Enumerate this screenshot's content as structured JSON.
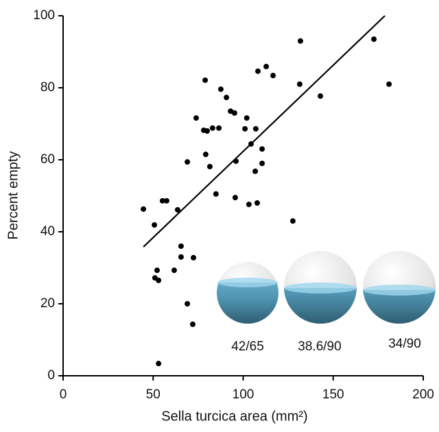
{
  "chart_data": {
    "type": "scatter",
    "xlabel": "Sella turcica area (mm²)",
    "ylabel": "Percent empty",
    "xlim": [
      0,
      200
    ],
    "xticks": [
      0,
      50,
      100,
      150,
      200
    ],
    "ylim": [
      0,
      100
    ],
    "yticks": [
      0,
      20,
      40,
      60,
      80,
      100
    ],
    "color": "#000000",
    "x": [
      44.6,
      50.7,
      55.2,
      57.5,
      63.6,
      52.2,
      51.0,
      53.0,
      53.0,
      61.7,
      65.5,
      65.5,
      72.4,
      69.0,
      69.0,
      72.0,
      73.9,
      78.9,
      78.1,
      80.0,
      79.2,
      81.5,
      83.0,
      86.5,
      87.6,
      90.7,
      84.9,
      93.0,
      95.2,
      96.0,
      95.6,
      101.0,
      102.0,
      104.4,
      103.2,
      107.0,
      106.7,
      107.8,
      108.2,
      112.8,
      116.6,
      110.5,
      110.5,
      127.6,
      131.4,
      131.8,
      142.9,
      172.6,
      181.0
    ],
    "y": [
      46.3,
      41.9,
      48.6,
      48.6,
      46.1,
      29.3,
      27.2,
      26.5,
      3.4,
      29.3,
      36.0,
      33.0,
      32.8,
      59.4,
      20.0,
      14.3,
      71.6,
      82.1,
      68.2,
      68.0,
      61.5,
      58.1,
      68.8,
      68.8,
      79.6,
      77.3,
      50.5,
      73.5,
      73.0,
      59.6,
      49.5,
      68.6,
      71.6,
      64.4,
      47.6,
      68.6,
      56.8,
      48.0,
      84.6,
      85.9,
      83.4,
      63.0,
      59.0,
      43.0,
      81.0,
      93.0,
      77.7,
      93.5,
      81.0
    ],
    "trendline": {
      "x": [
        44.6,
        178.7
      ],
      "y": [
        35.8,
        100
      ]
    },
    "annotations": [
      "42/65",
      "38.6/90",
      "34/90"
    ]
  }
}
